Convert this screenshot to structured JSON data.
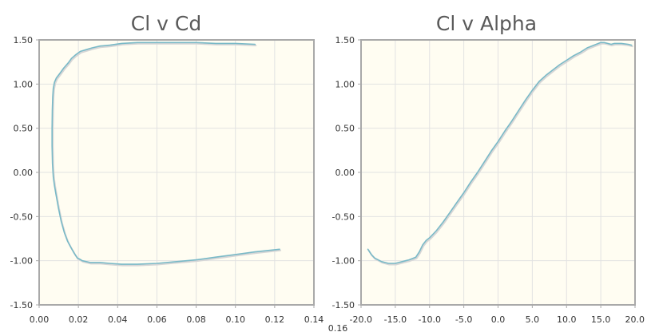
{
  "colors": {
    "plot_bg": "#fffdf2",
    "grid": "#e2e2e2",
    "axis": "#a9a9a9",
    "line": "#79b9c7",
    "line_shadow": "#d6d6d6"
  },
  "chart_data": [
    {
      "type": "line",
      "title": "Cl v Cd",
      "xlabel": "",
      "ylabel": "",
      "xlim": [
        0,
        0.14
      ],
      "ylim": [
        -1.5,
        1.5
      ],
      "xticks": [
        "0.00",
        "0.02",
        "0.04",
        "0.06",
        "0.08",
        "0.10",
        "0.12",
        "0.14"
      ],
      "xticks_extra": [
        "0.16"
      ],
      "yticks": [
        "-1.50",
        "-1.00",
        "-0.50",
        "0.00",
        "0.50",
        "1.00",
        "1.50"
      ],
      "grid": true,
      "series": [
        {
          "x": [
            0.1225,
            0.11,
            0.1,
            0.09,
            0.08,
            0.07,
            0.06,
            0.05,
            0.042,
            0.036,
            0.031,
            0.026,
            0.022,
            0.0205,
            0.0195,
            0.018,
            0.0162,
            0.0145,
            0.0128,
            0.0112,
            0.0098,
            0.0086,
            0.0078,
            0.0072,
            0.0068,
            0.0066,
            0.0066,
            0.0067,
            0.0069,
            0.0072,
            0.0078,
            0.0088,
            0.0105,
            0.0125,
            0.0148,
            0.0165,
            0.0185,
            0.021,
            0.024,
            0.027,
            0.031,
            0.036,
            0.042,
            0.05,
            0.06,
            0.07,
            0.08,
            0.09,
            0.1,
            0.11
          ],
          "y": [
            -0.87,
            -0.9,
            -0.93,
            -0.96,
            -0.99,
            -1.01,
            -1.03,
            -1.04,
            -1.04,
            -1.03,
            -1.02,
            -1.02,
            -1.0,
            -0.98,
            -0.97,
            -0.92,
            -0.85,
            -0.78,
            -0.68,
            -0.55,
            -0.4,
            -0.25,
            -0.15,
            -0.05,
            0.1,
            0.3,
            0.5,
            0.7,
            0.85,
            0.95,
            1.02,
            1.07,
            1.12,
            1.18,
            1.24,
            1.29,
            1.33,
            1.37,
            1.39,
            1.41,
            1.43,
            1.44,
            1.46,
            1.47,
            1.47,
            1.47,
            1.47,
            1.46,
            1.46,
            1.45
          ]
        }
      ]
    },
    {
      "type": "line",
      "title": "Cl v Alpha",
      "xlabel": "",
      "ylabel": "",
      "xlim": [
        -20,
        20
      ],
      "ylim": [
        -1.5,
        1.5
      ],
      "xticks": [
        "-20.0",
        "-15.0",
        "-10.0",
        "-5.0",
        "0.0",
        "5.0",
        "10.0",
        "15.0",
        "20.0"
      ],
      "yticks": [
        "-1.50",
        "-1.00",
        "-0.50",
        "0.00",
        "0.50",
        "1.00",
        "1.50"
      ],
      "grid": true,
      "series": [
        {
          "x": [
            -19.0,
            -18.5,
            -18.0,
            -17.0,
            -16.0,
            -15.0,
            -14.5,
            -14.0,
            -13.0,
            -12.0,
            -11.5,
            -11.0,
            -10.5,
            -10.0,
            -9.0,
            -8.0,
            -7.0,
            -6.0,
            -5.0,
            -4.0,
            -3.0,
            -2.0,
            -1.0,
            0.0,
            1.0,
            2.0,
            3.0,
            4.0,
            5.0,
            6.0,
            7.0,
            8.0,
            9.0,
            10.0,
            11.0,
            12.0,
            13.0,
            14.0,
            15.0,
            15.5,
            16.0,
            16.5,
            17.0,
            18.0,
            19.0,
            19.5
          ],
          "y": [
            -0.87,
            -0.93,
            -0.97,
            -1.01,
            -1.03,
            -1.03,
            -1.02,
            -1.01,
            -0.99,
            -0.96,
            -0.9,
            -0.82,
            -0.77,
            -0.74,
            -0.66,
            -0.56,
            -0.45,
            -0.34,
            -0.23,
            -0.11,
            0.0,
            0.12,
            0.24,
            0.35,
            0.47,
            0.58,
            0.7,
            0.82,
            0.93,
            1.03,
            1.1,
            1.16,
            1.22,
            1.27,
            1.32,
            1.36,
            1.41,
            1.44,
            1.47,
            1.47,
            1.46,
            1.45,
            1.46,
            1.46,
            1.45,
            1.44
          ]
        }
      ]
    }
  ]
}
